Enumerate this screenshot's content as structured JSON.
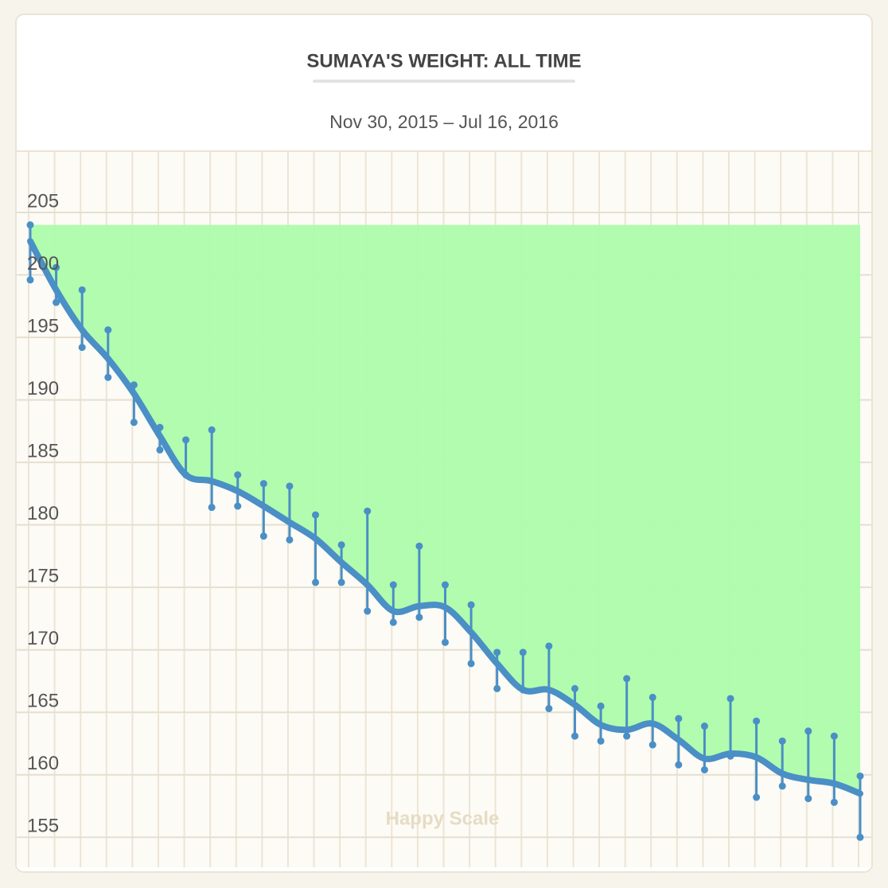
{
  "chart_data": {
    "type": "range-trend",
    "title": "SUMAYA'S WEIGHT: ALL TIME",
    "subtitle": "Nov 30, 2015 – Jul 16, 2016",
    "watermark": "Happy Scale",
    "categories": [
      null,
      null,
      null,
      null,
      null,
      null,
      null,
      null,
      null,
      null,
      null,
      null,
      null,
      null,
      null,
      null,
      null,
      null,
      null,
      null,
      null,
      null,
      null,
      null,
      null,
      null,
      null,
      null,
      null,
      null,
      null,
      null,
      null
    ],
    "high": [
      204.0,
      200.6,
      198.8,
      195.6,
      191.2,
      187.8,
      186.8,
      187.6,
      184.0,
      183.3,
      183.1,
      180.8,
      178.4,
      181.1,
      175.2,
      178.3,
      175.2,
      173.6,
      169.8,
      169.8,
      170.3,
      166.9,
      165.5,
      167.7,
      166.2,
      164.5,
      163.9,
      166.1,
      164.3,
      162.7,
      163.5,
      163.1,
      159.9
    ],
    "low": [
      199.6,
      197.8,
      194.2,
      191.8,
      188.2,
      186.0,
      184.0,
      181.4,
      181.5,
      179.1,
      178.8,
      175.4,
      175.4,
      173.1,
      172.2,
      172.6,
      170.6,
      168.9,
      166.9,
      166.8,
      165.3,
      163.1,
      162.7,
      163.1,
      162.4,
      160.8,
      160.4,
      161.5,
      158.2,
      159.1,
      158.1,
      157.8,
      155.0
    ],
    "trend": [
      202.7,
      198.8,
      195.6,
      193.3,
      190.5,
      187.1,
      184.0,
      183.5,
      182.7,
      181.5,
      180.2,
      178.9,
      177.0,
      175.2,
      173.1,
      173.5,
      173.4,
      171.4,
      168.9,
      166.8,
      166.8,
      165.6,
      164.0,
      163.6,
      164.1,
      162.8,
      161.3,
      161.7,
      161.4,
      160.1,
      159.6,
      159.3,
      158.5
    ],
    "color": "#4a8fc6",
    "fill_color": "#adfcaa",
    "ylim": [
      152.6,
      209.9
    ],
    "yticks": [
      155,
      160,
      165,
      170,
      175,
      180,
      185,
      190,
      195,
      200,
      205
    ],
    "grid": true
  }
}
